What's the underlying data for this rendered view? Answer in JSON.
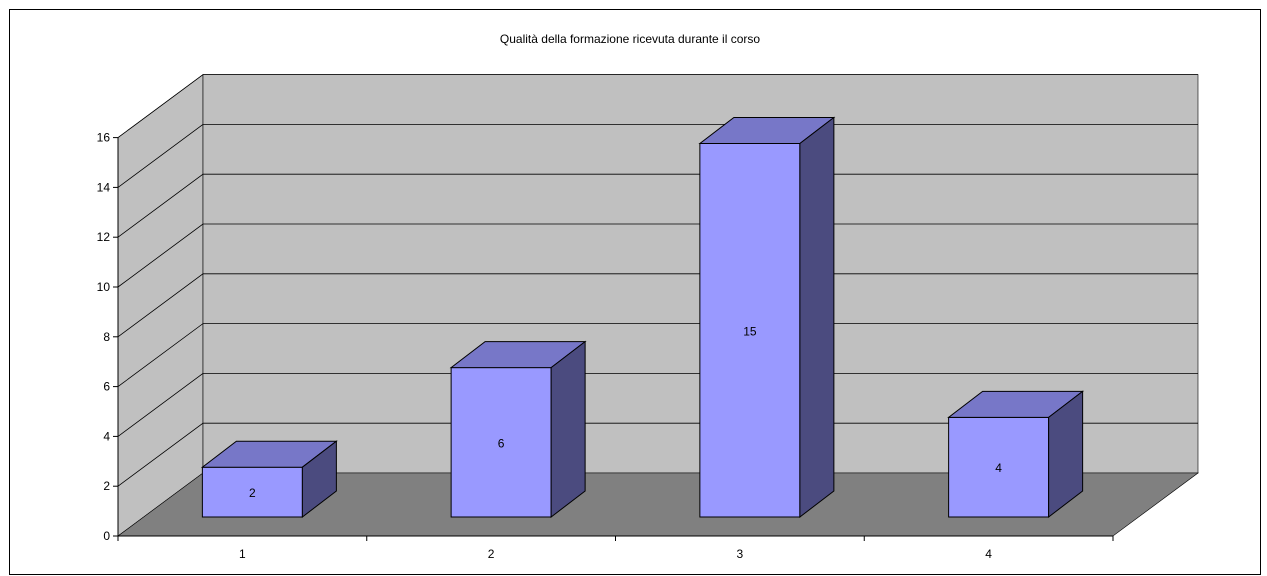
{
  "chart_data": {
    "type": "bar",
    "style": "3d-column",
    "title": "Qualità della formazione ricevuta durante il corso",
    "xlabel": "",
    "ylabel": "",
    "categories": [
      "1",
      "2",
      "3",
      "4"
    ],
    "values": [
      2,
      6,
      15,
      4
    ],
    "data_labels": [
      "2",
      "6",
      "15",
      "4"
    ],
    "ylim": [
      0,
      16
    ],
    "yticks": [
      "0",
      "2",
      "4",
      "6",
      "8",
      "10",
      "12",
      "14",
      "16"
    ],
    "grid": true,
    "legend": "none"
  },
  "colors": {
    "bar_front": "#9999ff",
    "bar_top": "#7777c8",
    "bar_side": "#4b4b7f",
    "back_wall": "#c0c0c0",
    "side_wall": "#c0c0c0",
    "floor": "#808080"
  }
}
